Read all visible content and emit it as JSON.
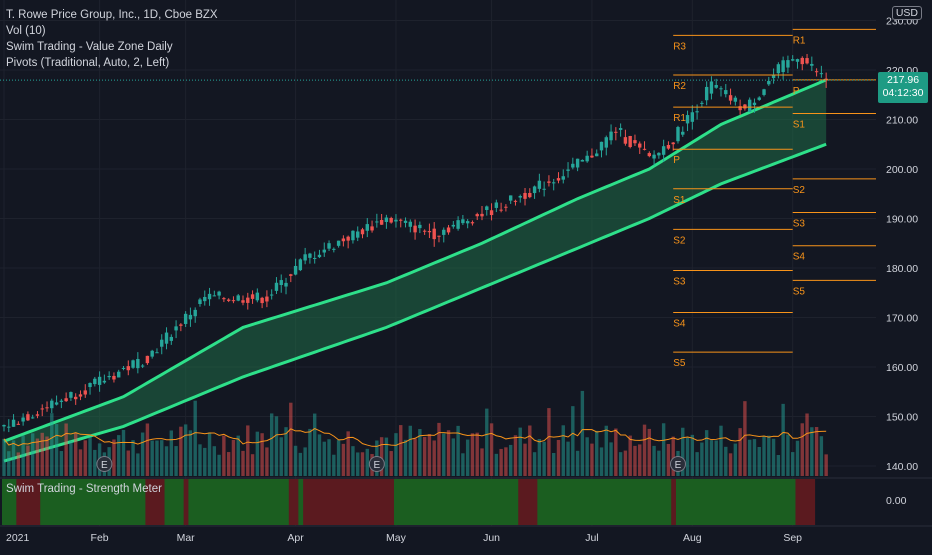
{
  "legend": {
    "title": "T. Rowe Price Group, Inc., 1D, Cboe BZX",
    "vol": "Vol (10)",
    "indicator": "Swim Trading - Value Zone Daily",
    "pivots": "Pivots (Traditional, Auto, 2, Left)"
  },
  "subpane_label": "Swim Trading - Strength Meter",
  "currency": "USD",
  "last_price": "217.96",
  "countdown": "04:12:30",
  "colors": {
    "background": "#131722",
    "up": "#26a69a",
    "down": "#ef5350",
    "band_line": "#2ee08a",
    "band_fill": "#1f6b47",
    "pivot": "#f7931a",
    "strength_green": "#1b5e20",
    "strength_red": "#5b1a1f",
    "vol_ma": "#f7931a"
  },
  "chart_data": {
    "type": "candlestick",
    "symbol": "T. Rowe Price Group, Inc.",
    "interval": "1D",
    "exchange": "Cboe BZX",
    "x_tick_labels": [
      "2021",
      "Feb",
      "Mar",
      "Apr",
      "May",
      "Jun",
      "Jul",
      "Aug",
      "Sep"
    ],
    "y_tick_labels": [
      "140.00",
      "150.00",
      "160.00",
      "170.00",
      "180.00",
      "190.00",
      "200.00",
      "210.00",
      "220.00",
      "230.00"
    ],
    "ylim": [
      138,
      234
    ],
    "start_close": 148,
    "last_close": 217.96,
    "trading_days": 172,
    "close_anchors": [
      {
        "day": 0,
        "close": 148
      },
      {
        "day": 20,
        "close": 157
      },
      {
        "day": 30,
        "close": 162
      },
      {
        "day": 42,
        "close": 174
      },
      {
        "day": 55,
        "close": 174
      },
      {
        "day": 63,
        "close": 182
      },
      {
        "day": 80,
        "close": 190
      },
      {
        "day": 90,
        "close": 187
      },
      {
        "day": 105,
        "close": 193
      },
      {
        "day": 115,
        "close": 198
      },
      {
        "day": 122,
        "close": 202
      },
      {
        "day": 128,
        "close": 208
      },
      {
        "day": 135,
        "close": 202
      },
      {
        "day": 140,
        "close": 206
      },
      {
        "day": 148,
        "close": 217
      },
      {
        "day": 155,
        "close": 212
      },
      {
        "day": 162,
        "close": 220
      },
      {
        "day": 166,
        "close": 223
      },
      {
        "day": 172,
        "close": 218
      }
    ],
    "value_zone": {
      "upper_anchors": [
        {
          "day": 0,
          "value": 145
        },
        {
          "day": 25,
          "value": 154
        },
        {
          "day": 50,
          "value": 168
        },
        {
          "day": 80,
          "value": 177
        },
        {
          "day": 100,
          "value": 185
        },
        {
          "day": 120,
          "value": 194
        },
        {
          "day": 135,
          "value": 200
        },
        {
          "day": 150,
          "value": 209
        },
        {
          "day": 172,
          "value": 218
        }
      ],
      "lower_anchors": [
        {
          "day": 0,
          "value": 141
        },
        {
          "day": 25,
          "value": 148
        },
        {
          "day": 50,
          "value": 158
        },
        {
          "day": 80,
          "value": 168
        },
        {
          "day": 100,
          "value": 176
        },
        {
          "day": 120,
          "value": 184
        },
        {
          "day": 135,
          "value": 190
        },
        {
          "day": 150,
          "value": 197
        },
        {
          "day": 172,
          "value": 205
        }
      ]
    },
    "pivots": [
      {
        "label": "R1",
        "value": 228.2,
        "from_day": 165
      },
      {
        "label": "P",
        "value": 218.0,
        "from_day": 165
      },
      {
        "label": "S1",
        "value": 211.2,
        "from_day": 165
      },
      {
        "label": "S2",
        "value": 198.0,
        "from_day": 165
      },
      {
        "label": "S3",
        "value": 191.2,
        "from_day": 165
      },
      {
        "label": "S4",
        "value": 184.5,
        "from_day": 165
      },
      {
        "label": "S5",
        "value": 177.5,
        "from_day": 165
      },
      {
        "label": "R3",
        "value": 227.0,
        "from_day": 140
      },
      {
        "label": "R2",
        "value": 219.0,
        "from_day": 140
      },
      {
        "label": "R1",
        "value": 212.5,
        "from_day": 140
      },
      {
        "label": "P",
        "value": 204.0,
        "from_day": 140
      },
      {
        "label": "S1",
        "value": 196.0,
        "from_day": 140
      },
      {
        "label": "S2",
        "value": 187.8,
        "from_day": 140
      },
      {
        "label": "S3",
        "value": 179.5,
        "from_day": 140
      },
      {
        "label": "S4",
        "value": 171.0,
        "from_day": 140
      },
      {
        "label": "S5",
        "value": 163.0,
        "from_day": 140
      }
    ],
    "earnings_marker": "E",
    "earnings_days": [
      21,
      78,
      141
    ],
    "strength_meter": {
      "y_tick_label": "0.00",
      "segments": [
        {
          "from_day": 0,
          "to_day": 3,
          "state": "green"
        },
        {
          "from_day": 3,
          "to_day": 8,
          "state": "red"
        },
        {
          "from_day": 8,
          "to_day": 30,
          "state": "green"
        },
        {
          "from_day": 30,
          "to_day": 34,
          "state": "red"
        },
        {
          "from_day": 34,
          "to_day": 38,
          "state": "green"
        },
        {
          "from_day": 38,
          "to_day": 39,
          "state": "red"
        },
        {
          "from_day": 39,
          "to_day": 60,
          "state": "green"
        },
        {
          "from_day": 60,
          "to_day": 62,
          "state": "red"
        },
        {
          "from_day": 62,
          "to_day": 63,
          "state": "green"
        },
        {
          "from_day": 63,
          "to_day": 82,
          "state": "red"
        },
        {
          "from_day": 82,
          "to_day": 108,
          "state": "green"
        },
        {
          "from_day": 108,
          "to_day": 112,
          "state": "red"
        },
        {
          "from_day": 112,
          "to_day": 140,
          "state": "green"
        },
        {
          "from_day": 140,
          "to_day": 141,
          "state": "red"
        },
        {
          "from_day": 141,
          "to_day": 166,
          "state": "green"
        },
        {
          "from_day": 166,
          "to_day": 170,
          "state": "red"
        }
      ]
    }
  }
}
